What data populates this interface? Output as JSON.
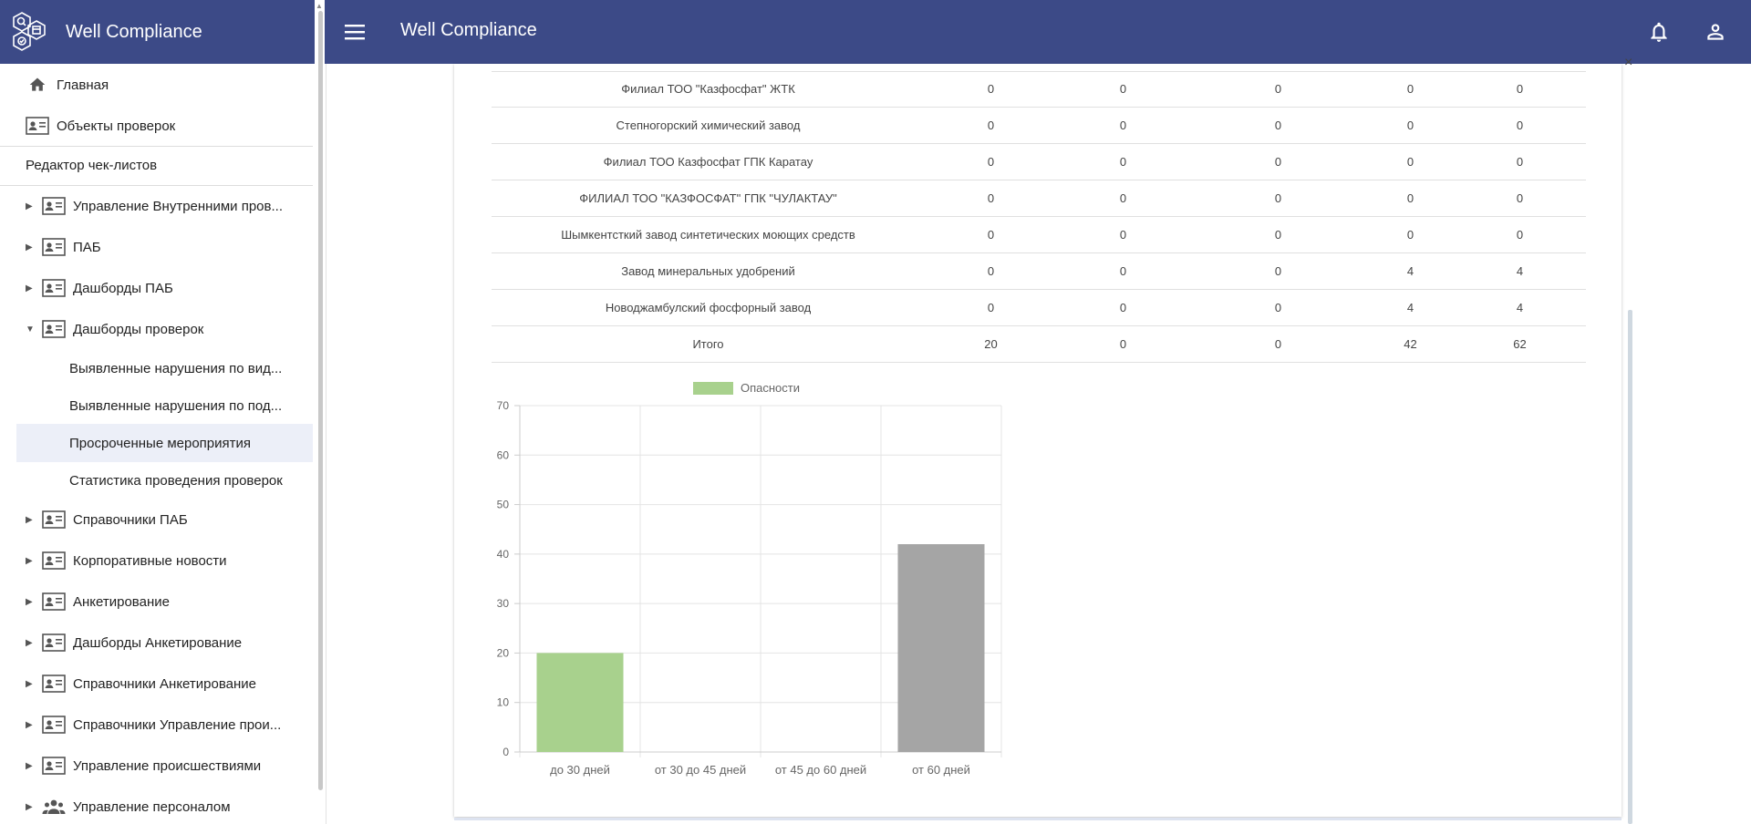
{
  "app": {
    "title": "Well Compliance",
    "header_title": "Well Compliance"
  },
  "sidebar": {
    "home": "Главная",
    "inspection_objects": "Объекты проверок",
    "section_header": "Редактор чек-листов",
    "items": [
      {
        "label": "Управление Внутренними пров..."
      },
      {
        "label": "ПАБ"
      },
      {
        "label": "Дашборды ПАБ"
      },
      {
        "label": "Дашборды проверок"
      },
      {
        "label": "Выявленные нарушения по вид..."
      },
      {
        "label": "Выявленные нарушения по под..."
      },
      {
        "label": "Просроченные мероприятия"
      },
      {
        "label": "Статистика проведения проверок"
      },
      {
        "label": "Справочники ПАБ"
      },
      {
        "label": "Корпоративные новости"
      },
      {
        "label": "Анкетирование"
      },
      {
        "label": "Дашборды Анкетирование"
      },
      {
        "label": "Справочники Анкетирование"
      },
      {
        "label": "Справочники Управление прои..."
      },
      {
        "label": "Управление происшествиями"
      },
      {
        "label": "Управление персоналом"
      }
    ]
  },
  "table": {
    "rows": [
      {
        "name": "Филиал ТОО \"Казфосфат\" ЖТК",
        "v": [
          "0",
          "0",
          "0",
          "0",
          "0"
        ]
      },
      {
        "name": "Степногорский химический завод",
        "v": [
          "0",
          "0",
          "0",
          "0",
          "0"
        ]
      },
      {
        "name": "Филиал ТОО Казфосфат ГПК Каратау",
        "v": [
          "0",
          "0",
          "0",
          "0",
          "0"
        ]
      },
      {
        "name": "ФИЛИАЛ ТОО \"КАЗФОСФАТ\" ГПК \"ЧУЛАКТАУ\"",
        "v": [
          "0",
          "0",
          "0",
          "0",
          "0"
        ]
      },
      {
        "name": "Шымкентсткий завод синтетических моющих средств",
        "v": [
          "0",
          "0",
          "0",
          "0",
          "0"
        ]
      },
      {
        "name": "Завод минеральных удобрений",
        "v": [
          "0",
          "0",
          "0",
          "4",
          "4"
        ]
      },
      {
        "name": "Новоджамбулский фосфорный завод",
        "v": [
          "0",
          "0",
          "0",
          "4",
          "4"
        ]
      },
      {
        "name": "Итого",
        "v": [
          "20",
          "0",
          "0",
          "42",
          "62"
        ]
      }
    ]
  },
  "chart_data": {
    "type": "bar",
    "categories": [
      "до 30 дней",
      "от 30 до 45 дней",
      "от 45 до 60 дней",
      "от 60 дней"
    ],
    "series": [
      {
        "name": "Опасности",
        "values": [
          20,
          0,
          0,
          42
        ]
      }
    ],
    "bar_colors": [
      "#a8d18d",
      "#a8d18d",
      "#a8d18d",
      "#a5a5a5"
    ],
    "legend_color": "#a8d18d",
    "ylim": [
      0,
      70
    ],
    "yticks": [
      "0",
      "10",
      "20",
      "30",
      "40",
      "50",
      "60",
      "70"
    ],
    "grid": true,
    "legend_position": "top"
  },
  "colors": {
    "header": "#3c4a87",
    "active_item_bg": "#eceff8"
  },
  "icons": {
    "menu": "hamburger-icon",
    "bell": "bell-icon",
    "user": "user-icon",
    "home": "home-icon",
    "contact_card": "contact-card-icon",
    "people": "people-icon",
    "close": "close-icon"
  },
  "ui": {
    "close_symbol": "×"
  }
}
